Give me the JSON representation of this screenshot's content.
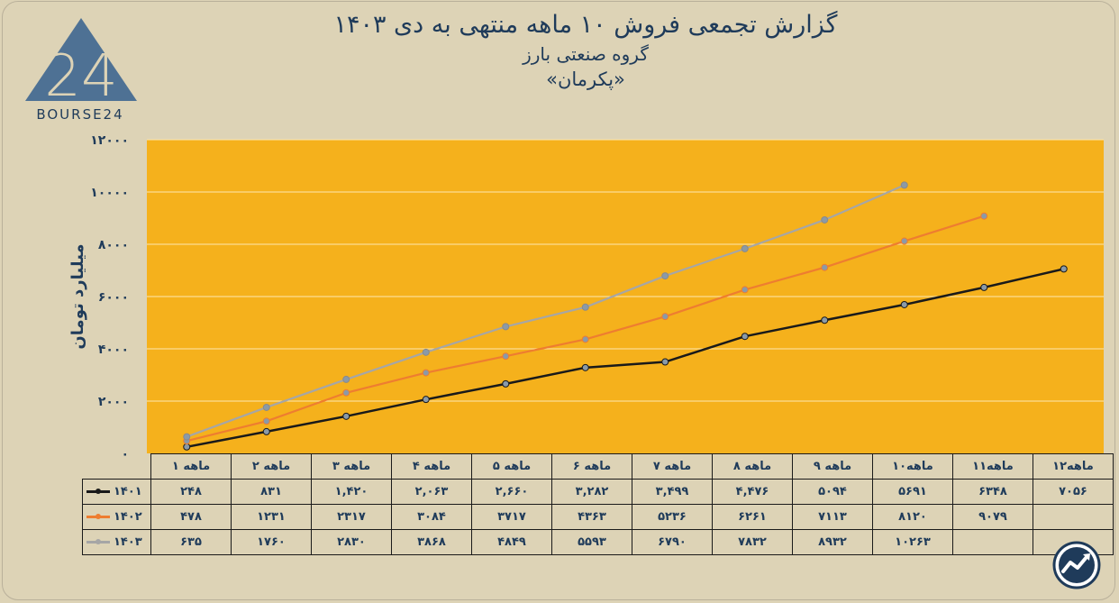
{
  "header": {
    "title": "گزارش تجمعی فروش ۱۰ ماهه منتهی به دی ۱۴۰۳",
    "subtitle": "گروه صنعتی بارز",
    "company": "«پکرمان»"
  },
  "logo": {
    "text": "BOURSE24",
    "digits": "24"
  },
  "colors": {
    "plot_bg": "#f5b11c",
    "s1401": "#1a1a1a",
    "s1402": "#ee7d30",
    "s1403": "#a6a6a6",
    "text": "#1f3b5a"
  },
  "chart_data": {
    "type": "line",
    "title": "گزارش تجمعی فروش ۱۰ ماهه منتهی به دی ۱۴۰۳",
    "ylabel": "میلیارد تومان",
    "ylim": [
      0,
      12000
    ],
    "yticks": [
      0,
      2000,
      4000,
      6000,
      8000,
      10000,
      12000
    ],
    "ytick_labels": [
      "۰",
      "۲۰۰۰",
      "۴۰۰۰",
      "۶۰۰۰",
      "۸۰۰۰",
      "۱۰۰۰۰",
      "۱۲۰۰۰"
    ],
    "categories": [
      "۱ ماهه",
      "۲ ماهه",
      "۳ ماهه",
      "۴ ماهه",
      "۵ ماهه",
      "۶ ماهه",
      "۷ ماهه",
      "۸ ماهه",
      "۹ ماهه",
      "۱۰ماهه",
      "۱۱ماهه",
      "۱۲ماهه"
    ],
    "grid": true,
    "series": [
      {
        "name": "۱۴۰۱",
        "color": "#1a1a1a",
        "values": [
          248,
          831,
          1420,
          2063,
          2660,
          3282,
          3499,
          4476,
          5094,
          5691,
          6348,
          7056
        ],
        "labels": [
          "۲۴۸",
          "۸۳۱",
          "۱,۴۲۰",
          "۲,۰۶۳",
          "۲,۶۶۰",
          "۳,۲۸۲",
          "۳,۴۹۹",
          "۴,۴۷۶",
          "۵۰۹۴",
          "۵۶۹۱",
          "۶۳۴۸",
          "۷۰۵۶"
        ]
      },
      {
        "name": "۱۴۰۲",
        "color": "#ee7d30",
        "values": [
          478,
          1231,
          2317,
          3084,
          3717,
          4363,
          5236,
          6261,
          7113,
          8120,
          9079,
          null
        ],
        "labels": [
          "۴۷۸",
          "۱۲۳۱",
          "۲۳۱۷",
          "۳۰۸۴",
          "۳۷۱۷",
          "۴۳۶۳",
          "۵۲۳۶",
          "۶۲۶۱",
          "۷۱۱۳",
          "۸۱۲۰",
          "۹۰۷۹",
          ""
        ]
      },
      {
        "name": "۱۴۰۳",
        "color": "#a6a6a6",
        "values": [
          635,
          1760,
          2830,
          3868,
          4849,
          5593,
          6790,
          7832,
          8932,
          10263,
          null,
          null
        ],
        "labels": [
          "۶۳۵",
          "۱۷۶۰",
          "۲۸۳۰",
          "۳۸۶۸",
          "۴۸۴۹",
          "۵۵۹۳",
          "۶۷۹۰",
          "۷۸۳۲",
          "۸۹۳۲",
          "۱۰۲۶۳",
          "",
          ""
        ]
      }
    ]
  }
}
